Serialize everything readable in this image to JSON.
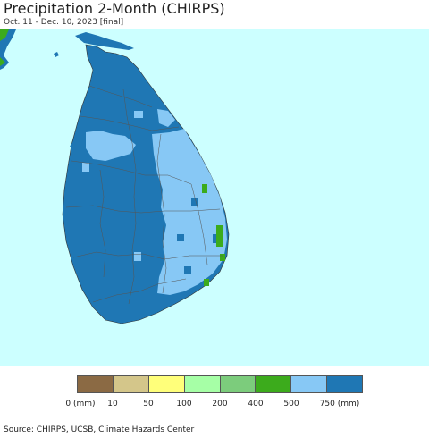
{
  "header": {
    "title": "Precipitation 2-Month (CHIRPS)",
    "subtitle": "Oct. 11 - Dec. 10, 2023 [final]"
  },
  "map": {
    "region": "Sri Lanka",
    "ocean_color": "#ccffff",
    "land_colors": {
      "dominant": "#1f77b4",
      "secondary": "#87c8f5",
      "minor": "#3cab1c"
    }
  },
  "legend": {
    "colors": [
      "#8b6a44",
      "#d4c68a",
      "#ffff7a",
      "#a6ffa6",
      "#7ccc7c",
      "#3cab1c",
      "#87c8f5",
      "#1f77b4"
    ],
    "labels": [
      "0 (mm)",
      "10",
      "50",
      "100",
      "200",
      "400",
      "500",
      "750 (mm)"
    ]
  },
  "footer": {
    "source": "Source: CHIRPS, UCSB, Climate Hazards Center"
  }
}
